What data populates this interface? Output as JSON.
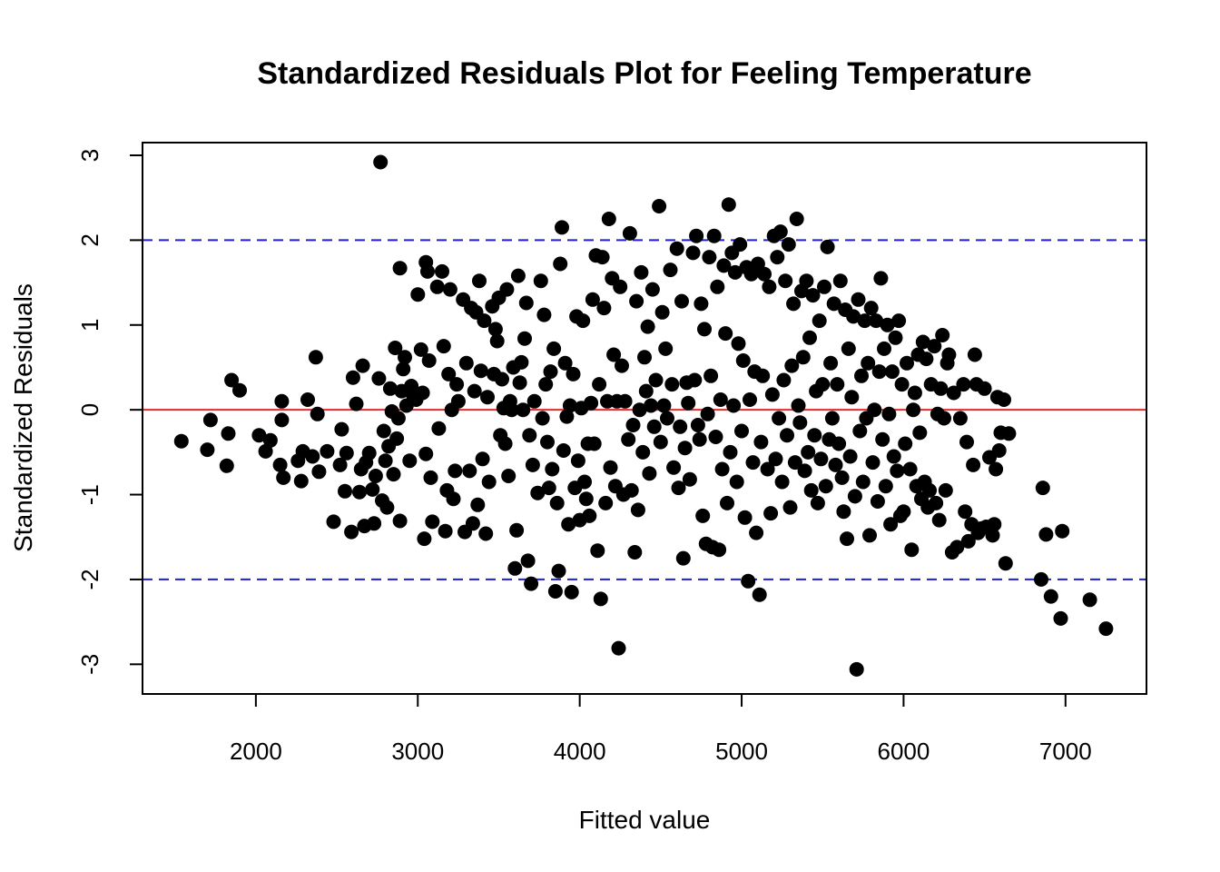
{
  "chart_data": {
    "type": "scatter",
    "title": "Standardized Residuals Plot for Feeling Temperature",
    "xlabel": "Fitted value",
    "ylabel": "Standardized Residuals",
    "xlim": [
      1300,
      7500
    ],
    "ylim": [
      -3.35,
      3.15
    ],
    "xticks": [
      2000,
      3000,
      4000,
      5000,
      6000,
      7000
    ],
    "yticks": [
      -3,
      -2,
      -1,
      0,
      1,
      2,
      3
    ],
    "grid": false,
    "reference_lines": [
      {
        "y": 0,
        "color": "#e8292d",
        "style": "solid"
      },
      {
        "y": 2,
        "color": "#1f1fd6",
        "style": "dashed"
      },
      {
        "y": -2,
        "color": "#1f1fd6",
        "style": "dashed"
      }
    ],
    "point_color": "#000000",
    "points": [
      [
        1540,
        -0.37
      ],
      [
        1700,
        -0.47
      ],
      [
        1720,
        -0.12
      ],
      [
        1820,
        -0.66
      ],
      [
        1830,
        -0.28
      ],
      [
        1850,
        0.35
      ],
      [
        1900,
        0.23
      ],
      [
        2020,
        -0.3
      ],
      [
        2060,
        -0.49
      ],
      [
        2090,
        -0.36
      ],
      [
        2150,
        -0.65
      ],
      [
        2160,
        0.1
      ],
      [
        2160,
        -0.12
      ],
      [
        2170,
        -0.8
      ],
      [
        2260,
        -0.6
      ],
      [
        2280,
        -0.84
      ],
      [
        2290,
        -0.49
      ],
      [
        2320,
        0.12
      ],
      [
        2350,
        -0.55
      ],
      [
        2370,
        0.62
      ],
      [
        2380,
        -0.05
      ],
      [
        2390,
        -0.73
      ],
      [
        2440,
        -0.49
      ],
      [
        2480,
        -1.32
      ],
      [
        2520,
        -0.65
      ],
      [
        2530,
        -0.23
      ],
      [
        2550,
        -0.96
      ],
      [
        2560,
        -0.51
      ],
      [
        2590,
        -1.44
      ],
      [
        2600,
        0.38
      ],
      [
        2620,
        0.07
      ],
      [
        2640,
        -0.97
      ],
      [
        2650,
        -0.7
      ],
      [
        2660,
        0.52
      ],
      [
        2670,
        -1.37
      ],
      [
        2680,
        -0.62
      ],
      [
        2700,
        -0.51
      ],
      [
        2720,
        -0.94
      ],
      [
        2730,
        -1.34
      ],
      [
        2740,
        -0.78
      ],
      [
        2760,
        0.37
      ],
      [
        2770,
        2.92
      ],
      [
        2780,
        -1.07
      ],
      [
        2790,
        -0.25
      ],
      [
        2800,
        -0.6
      ],
      [
        2810,
        -1.15
      ],
      [
        2820,
        -0.43
      ],
      [
        2830,
        0.25
      ],
      [
        2840,
        -0.02
      ],
      [
        2850,
        -0.76
      ],
      [
        2860,
        0.73
      ],
      [
        2870,
        -0.34
      ],
      [
        2880,
        -0.1
      ],
      [
        2890,
        1.67
      ],
      [
        2890,
        -1.31
      ],
      [
        2900,
        0.22
      ],
      [
        2910,
        0.48
      ],
      [
        2920,
        0.62
      ],
      [
        2930,
        0.05
      ],
      [
        2950,
        -0.6
      ],
      [
        2960,
        0.28
      ],
      [
        2970,
        0.18
      ],
      [
        2990,
        0.12
      ],
      [
        3000,
        1.36
      ],
      [
        3020,
        0.71
      ],
      [
        3030,
        0.2
      ],
      [
        3040,
        -1.52
      ],
      [
        3050,
        -0.52
      ],
      [
        3050,
        1.74
      ],
      [
        3060,
        1.63
      ],
      [
        3070,
        0.58
      ],
      [
        3080,
        -0.8
      ],
      [
        3090,
        -1.32
      ],
      [
        3120,
        1.45
      ],
      [
        3130,
        -0.22
      ],
      [
        3150,
        1.63
      ],
      [
        3160,
        0.75
      ],
      [
        3170,
        -1.43
      ],
      [
        3180,
        -0.95
      ],
      [
        3190,
        0.42
      ],
      [
        3200,
        1.42
      ],
      [
        3210,
        0.0
      ],
      [
        3220,
        -1.05
      ],
      [
        3230,
        -0.72
      ],
      [
        3240,
        0.3
      ],
      [
        3250,
        0.1
      ],
      [
        3280,
        1.3
      ],
      [
        3290,
        -1.44
      ],
      [
        3300,
        0.55
      ],
      [
        3320,
        -0.72
      ],
      [
        3330,
        1.2
      ],
      [
        3340,
        -1.34
      ],
      [
        3350,
        0.22
      ],
      [
        3360,
        1.15
      ],
      [
        3370,
        -1.12
      ],
      [
        3380,
        1.52
      ],
      [
        3390,
        0.46
      ],
      [
        3400,
        -0.58
      ],
      [
        3410,
        1.05
      ],
      [
        3420,
        -1.46
      ],
      [
        3430,
        0.15
      ],
      [
        3440,
        -0.85
      ],
      [
        3460,
        1.22
      ],
      [
        3470,
        0.42
      ],
      [
        3480,
        0.95
      ],
      [
        3490,
        0.81
      ],
      [
        3500,
        1.32
      ],
      [
        3510,
        -0.3
      ],
      [
        3520,
        0.36
      ],
      [
        3530,
        0.02
      ],
      [
        3540,
        -0.4
      ],
      [
        3550,
        1.42
      ],
      [
        3560,
        -0.78
      ],
      [
        3570,
        0.1
      ],
      [
        3580,
        0.0
      ],
      [
        3590,
        0.5
      ],
      [
        3600,
        -1.87
      ],
      [
        3610,
        -1.42
      ],
      [
        3620,
        1.58
      ],
      [
        3630,
        0.32
      ],
      [
        3640,
        0.56
      ],
      [
        3650,
        0.0
      ],
      [
        3660,
        0.84
      ],
      [
        3670,
        1.26
      ],
      [
        3680,
        -1.78
      ],
      [
        3690,
        -0.3
      ],
      [
        3700,
        -2.05
      ],
      [
        3710,
        -0.65
      ],
      [
        3720,
        0.1
      ],
      [
        3740,
        -0.98
      ],
      [
        3760,
        1.52
      ],
      [
        3770,
        -0.1
      ],
      [
        3780,
        1.12
      ],
      [
        3790,
        0.3
      ],
      [
        3800,
        -0.38
      ],
      [
        3810,
        -0.92
      ],
      [
        3820,
        0.45
      ],
      [
        3830,
        -0.7
      ],
      [
        3840,
        0.72
      ],
      [
        3850,
        -2.14
      ],
      [
        3860,
        -1.1
      ],
      [
        3870,
        -1.9
      ],
      [
        3880,
        1.72
      ],
      [
        3890,
        2.15
      ],
      [
        3900,
        -0.48
      ],
      [
        3910,
        0.55
      ],
      [
        3920,
        -0.08
      ],
      [
        3930,
        -1.35
      ],
      [
        3940,
        0.05
      ],
      [
        3950,
        -2.15
      ],
      [
        3960,
        0.42
      ],
      [
        3970,
        -0.92
      ],
      [
        3980,
        1.1
      ],
      [
        3990,
        -0.6
      ],
      [
        4000,
        -1.3
      ],
      [
        4010,
        0.02
      ],
      [
        4020,
        1.05
      ],
      [
        4030,
        -0.85
      ],
      [
        4040,
        -1.05
      ],
      [
        4050,
        -0.4
      ],
      [
        4060,
        -1.25
      ],
      [
        4070,
        0.08
      ],
      [
        4080,
        1.3
      ],
      [
        4090,
        -0.4
      ],
      [
        4100,
        1.82
      ],
      [
        4110,
        -1.66
      ],
      [
        4120,
        0.3
      ],
      [
        4130,
        -2.23
      ],
      [
        4140,
        1.8
      ],
      [
        4150,
        1.2
      ],
      [
        4160,
        -1.1
      ],
      [
        4170,
        0.1
      ],
      [
        4180,
        2.25
      ],
      [
        4190,
        -0.68
      ],
      [
        4200,
        1.55
      ],
      [
        4210,
        0.65
      ],
      [
        4220,
        -0.9
      ],
      [
        4230,
        0.1
      ],
      [
        4240,
        -2.81
      ],
      [
        4250,
        1.45
      ],
      [
        4260,
        0.52
      ],
      [
        4270,
        -1.0
      ],
      [
        4280,
        0.1
      ],
      [
        4300,
        -0.35
      ],
      [
        4310,
        2.08
      ],
      [
        4320,
        -0.95
      ],
      [
        4330,
        -0.18
      ],
      [
        4340,
        -1.68
      ],
      [
        4350,
        1.28
      ],
      [
        4360,
        -1.18
      ],
      [
        4370,
        0.0
      ],
      [
        4380,
        1.62
      ],
      [
        4390,
        -0.5
      ],
      [
        4400,
        0.62
      ],
      [
        4410,
        0.22
      ],
      [
        4420,
        0.98
      ],
      [
        4430,
        -0.75
      ],
      [
        4440,
        0.05
      ],
      [
        4450,
        1.42
      ],
      [
        4460,
        -0.2
      ],
      [
        4470,
        0.35
      ],
      [
        4490,
        2.4
      ],
      [
        4500,
        -0.38
      ],
      [
        4510,
        1.15
      ],
      [
        4520,
        0.05
      ],
      [
        4530,
        0.72
      ],
      [
        4540,
        -0.1
      ],
      [
        4560,
        1.65
      ],
      [
        4570,
        0.3
      ],
      [
        4580,
        -0.68
      ],
      [
        4600,
        1.9
      ],
      [
        4610,
        -0.92
      ],
      [
        4620,
        -0.2
      ],
      [
        4630,
        1.28
      ],
      [
        4640,
        -1.75
      ],
      [
        4650,
        -0.45
      ],
      [
        4660,
        0.32
      ],
      [
        4670,
        0.08
      ],
      [
        4680,
        -0.82
      ],
      [
        4700,
        1.85
      ],
      [
        4710,
        0.35
      ],
      [
        4720,
        2.05
      ],
      [
        4730,
        -0.18
      ],
      [
        4740,
        -0.35
      ],
      [
        4750,
        1.25
      ],
      [
        4760,
        -1.25
      ],
      [
        4770,
        0.95
      ],
      [
        4780,
        -1.58
      ],
      [
        4790,
        -0.05
      ],
      [
        4800,
        1.8
      ],
      [
        4810,
        0.4
      ],
      [
        4820,
        -1.62
      ],
      [
        4830,
        2.05
      ],
      [
        4840,
        -0.32
      ],
      [
        4850,
        1.45
      ],
      [
        4860,
        -1.65
      ],
      [
        4870,
        0.12
      ],
      [
        4880,
        -0.7
      ],
      [
        4890,
        1.7
      ],
      [
        4900,
        0.9
      ],
      [
        4910,
        -1.1
      ],
      [
        4920,
        2.42
      ],
      [
        4930,
        -0.5
      ],
      [
        4940,
        1.85
      ],
      [
        4950,
        0.05
      ],
      [
        4960,
        1.62
      ],
      [
        4970,
        -0.85
      ],
      [
        4980,
        0.78
      ],
      [
        4990,
        1.95
      ],
      [
        5000,
        -0.25
      ],
      [
        5010,
        0.58
      ],
      [
        5020,
        -1.27
      ],
      [
        5030,
        1.68
      ],
      [
        5040,
        -2.02
      ],
      [
        5050,
        0.12
      ],
      [
        5060,
        1.6
      ],
      [
        5070,
        -0.62
      ],
      [
        5080,
        0.45
      ],
      [
        5090,
        -1.45
      ],
      [
        5100,
        1.72
      ],
      [
        5110,
        -2.18
      ],
      [
        5120,
        -0.38
      ],
      [
        5130,
        0.4
      ],
      [
        5140,
        1.6
      ],
      [
        5160,
        -0.7
      ],
      [
        5170,
        1.45
      ],
      [
        5180,
        -1.22
      ],
      [
        5190,
        0.18
      ],
      [
        5200,
        2.05
      ],
      [
        5210,
        -0.58
      ],
      [
        5220,
        1.8
      ],
      [
        5230,
        -0.1
      ],
      [
        5240,
        2.1
      ],
      [
        5250,
        -0.85
      ],
      [
        5260,
        0.35
      ],
      [
        5270,
        1.52
      ],
      [
        5280,
        -0.3
      ],
      [
        5290,
        1.95
      ],
      [
        5300,
        -1.15
      ],
      [
        5310,
        0.52
      ],
      [
        5320,
        1.25
      ],
      [
        5330,
        -0.62
      ],
      [
        5340,
        2.25
      ],
      [
        5350,
        0.05
      ],
      [
        5360,
        -0.15
      ],
      [
        5370,
        1.4
      ],
      [
        5380,
        0.62
      ],
      [
        5390,
        -0.72
      ],
      [
        5400,
        1.52
      ],
      [
        5410,
        -0.5
      ],
      [
        5420,
        0.85
      ],
      [
        5430,
        -0.95
      ],
      [
        5440,
        1.35
      ],
      [
        5450,
        -0.3
      ],
      [
        5460,
        0.22
      ],
      [
        5470,
        -1.1
      ],
      [
        5480,
        1.05
      ],
      [
        5490,
        -0.58
      ],
      [
        5500,
        0.3
      ],
      [
        5510,
        1.45
      ],
      [
        5520,
        -0.9
      ],
      [
        5530,
        1.92
      ],
      [
        5540,
        -0.35
      ],
      [
        5550,
        0.55
      ],
      [
        5560,
        -0.1
      ],
      [
        5570,
        1.25
      ],
      [
        5580,
        -0.65
      ],
      [
        5590,
        0.3
      ],
      [
        5600,
        -0.4
      ],
      [
        5610,
        1.52
      ],
      [
        5620,
        -0.8
      ],
      [
        5630,
        -1.2
      ],
      [
        5640,
        1.18
      ],
      [
        5650,
        -1.52
      ],
      [
        5660,
        0.72
      ],
      [
        5670,
        -0.55
      ],
      [
        5680,
        0.15
      ],
      [
        5690,
        1.1
      ],
      [
        5700,
        -1.02
      ],
      [
        5710,
        -3.06
      ],
      [
        5720,
        1.3
      ],
      [
        5730,
        -0.25
      ],
      [
        5740,
        0.4
      ],
      [
        5750,
        -0.85
      ],
      [
        5760,
        1.05
      ],
      [
        5770,
        -0.1
      ],
      [
        5780,
        0.55
      ],
      [
        5790,
        -1.48
      ],
      [
        5800,
        1.2
      ],
      [
        5810,
        -0.62
      ],
      [
        5820,
        0.0
      ],
      [
        5830,
        1.05
      ],
      [
        5840,
        -1.08
      ],
      [
        5850,
        0.45
      ],
      [
        5860,
        1.55
      ],
      [
        5870,
        -0.35
      ],
      [
        5880,
        0.72
      ],
      [
        5890,
        -0.9
      ],
      [
        5900,
        1.0
      ],
      [
        5910,
        -0.05
      ],
      [
        5920,
        -1.35
      ],
      [
        5930,
        0.45
      ],
      [
        5940,
        -0.55
      ],
      [
        5950,
        0.85
      ],
      [
        5960,
        -0.72
      ],
      [
        5970,
        1.05
      ],
      [
        5980,
        -1.25
      ],
      [
        5990,
        0.3
      ],
      [
        6000,
        -1.2
      ],
      [
        6010,
        -0.4
      ],
      [
        6020,
        0.55
      ],
      [
        6040,
        -0.7
      ],
      [
        6050,
        -1.65
      ],
      [
        6060,
        0.0
      ],
      [
        6070,
        0.2
      ],
      [
        6080,
        -0.9
      ],
      [
        6090,
        0.65
      ],
      [
        6100,
        -0.27
      ],
      [
        6110,
        -1.05
      ],
      [
        6120,
        0.8
      ],
      [
        6130,
        -0.85
      ],
      [
        6140,
        0.6
      ],
      [
        6150,
        -1.15
      ],
      [
        6160,
        -0.95
      ],
      [
        6170,
        0.3
      ],
      [
        6190,
        0.75
      ],
      [
        6200,
        -1.1
      ],
      [
        6210,
        -0.05
      ],
      [
        6220,
        -1.3
      ],
      [
        6230,
        0.25
      ],
      [
        6240,
        0.88
      ],
      [
        6250,
        -0.1
      ],
      [
        6260,
        -0.95
      ],
      [
        6270,
        0.55
      ],
      [
        6280,
        0.65
      ],
      [
        6300,
        -1.68
      ],
      [
        6310,
        0.2
      ],
      [
        6330,
        -1.62
      ],
      [
        6350,
        -0.1
      ],
      [
        6370,
        0.3
      ],
      [
        6380,
        -1.2
      ],
      [
        6390,
        -0.38
      ],
      [
        6400,
        -1.55
      ],
      [
        6420,
        -1.35
      ],
      [
        6430,
        -0.65
      ],
      [
        6440,
        0.65
      ],
      [
        6450,
        0.3
      ],
      [
        6460,
        -1.45
      ],
      [
        6480,
        -1.4
      ],
      [
        6500,
        0.25
      ],
      [
        6510,
        -1.38
      ],
      [
        6530,
        -0.56
      ],
      [
        6550,
        -1.48
      ],
      [
        6560,
        -1.35
      ],
      [
        6570,
        -0.7
      ],
      [
        6580,
        0.15
      ],
      [
        6590,
        -0.48
      ],
      [
        6600,
        -0.27
      ],
      [
        6620,
        0.12
      ],
      [
        6630,
        -1.81
      ],
      [
        6650,
        -0.28
      ],
      [
        6850,
        -2.0
      ],
      [
        6860,
        -0.92
      ],
      [
        6880,
        -1.47
      ],
      [
        6910,
        -2.2
      ],
      [
        6970,
        -2.46
      ],
      [
        6980,
        -1.43
      ],
      [
        7150,
        -2.24
      ],
      [
        7250,
        -2.58
      ]
    ]
  }
}
